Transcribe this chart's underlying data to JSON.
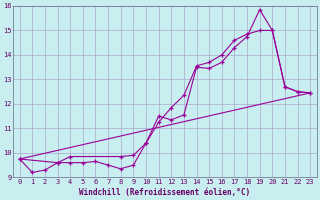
{
  "xlabel": "Windchill (Refroidissement éolien,°C)",
  "background_color": "#c8eef0",
  "grid_color": "#aaaacc",
  "line_color": "#990099",
  "xlim": [
    -0.5,
    23.5
  ],
  "ylim": [
    9,
    16
  ],
  "xticks": [
    0,
    1,
    2,
    3,
    4,
    5,
    6,
    7,
    8,
    9,
    10,
    11,
    12,
    13,
    14,
    15,
    16,
    17,
    18,
    19,
    20,
    21,
    22,
    23
  ],
  "yticks": [
    9,
    10,
    11,
    12,
    13,
    14,
    15,
    16
  ],
  "line1_x": [
    0,
    1,
    2,
    3,
    4,
    5,
    6,
    7,
    8,
    9,
    10,
    11,
    12,
    13,
    14,
    15,
    16,
    17,
    18,
    19,
    20,
    21,
    22,
    23
  ],
  "line1_y": [
    9.75,
    9.2,
    9.3,
    9.6,
    9.6,
    9.6,
    9.65,
    9.5,
    9.35,
    9.5,
    10.4,
    11.5,
    11.35,
    11.55,
    13.5,
    13.45,
    13.7,
    14.3,
    14.75,
    15.85,
    15.0,
    12.7,
    12.5,
    12.45
  ],
  "line2_x": [
    0,
    23
  ],
  "line2_y": [
    9.75,
    12.45
  ],
  "line3_x": [
    0,
    3,
    4,
    8,
    9,
    10,
    11,
    12,
    13,
    14,
    15,
    16,
    17,
    18,
    19,
    20,
    21,
    22,
    23
  ],
  "line3_y": [
    9.75,
    9.6,
    9.85,
    9.85,
    9.9,
    10.4,
    11.25,
    11.85,
    12.35,
    13.55,
    13.7,
    14.0,
    14.6,
    14.85,
    15.0,
    15.0,
    12.7,
    12.5,
    12.45
  ]
}
